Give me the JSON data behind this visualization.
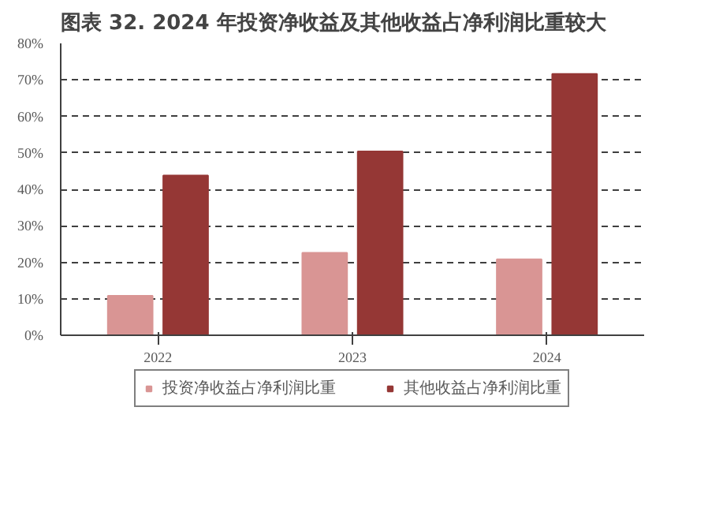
{
  "chart_data": {
    "type": "bar",
    "title": "图表 32. 2024 年投资净收益及其他收益占净利润比重较大",
    "categories": [
      "2022",
      "2023",
      "2024"
    ],
    "series": [
      {
        "name": "投资净收益占净利润比重",
        "color": "#d99594",
        "values": [
          10.8,
          22.6,
          20.8
        ]
      },
      {
        "name": "其他收益占净利润比重",
        "color": "#953735",
        "values": [
          43.8,
          50.4,
          71.6
        ]
      }
    ],
    "ylim": [
      0,
      80
    ],
    "yticks": [
      {
        "value": 0,
        "label": "0%"
      },
      {
        "value": 10,
        "label": "10%"
      },
      {
        "value": 20,
        "label": "20%"
      },
      {
        "value": 30,
        "label": "30%"
      },
      {
        "value": 40,
        "label": "40%"
      },
      {
        "value": 50,
        "label": "50%"
      },
      {
        "value": 60,
        "label": "60%"
      },
      {
        "value": 70,
        "label": "70%"
      },
      {
        "value": 80,
        "label": "80%"
      }
    ],
    "grid": "y",
    "legend": "bottom"
  }
}
